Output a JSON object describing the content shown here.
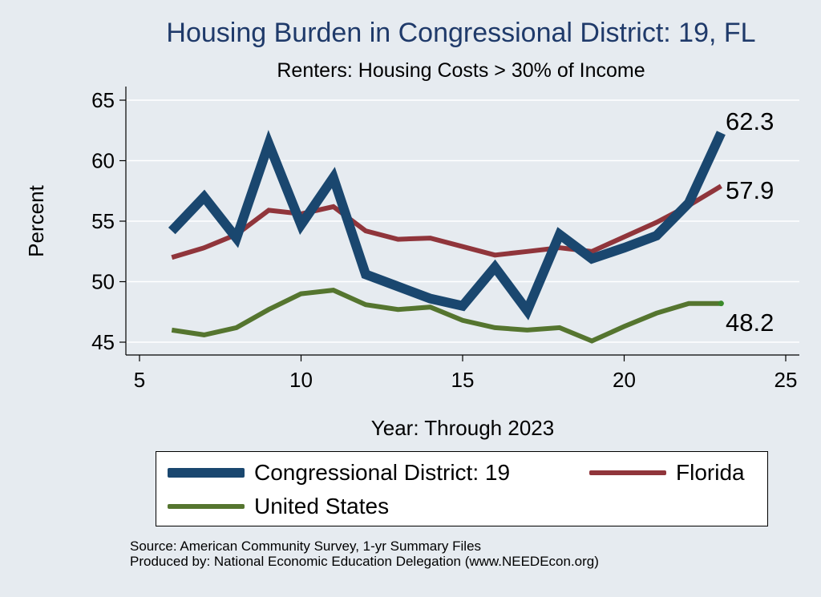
{
  "chart_data": {
    "type": "line",
    "title": "Housing Burden in Congressional District:  19, FL",
    "subtitle": "Renters: Housing Costs > 30% of Income",
    "xlabel": "Year: Through 2023",
    "ylabel": "Percent",
    "xlim": [
      5,
      25
    ],
    "ylim": [
      45,
      65
    ],
    "xticks": [
      5,
      10,
      15,
      20,
      25
    ],
    "yticks": [
      45,
      50,
      55,
      60,
      65
    ],
    "grid": true,
    "legend_position": "bottom",
    "x": [
      6,
      7,
      8,
      9,
      10,
      11,
      12,
      13,
      14,
      15,
      16,
      17,
      18,
      19,
      20,
      21,
      22,
      23
    ],
    "series": [
      {
        "name": "Congressional District:  19",
        "color": "#1a476f",
        "values": [
          54.2,
          57.0,
          53.6,
          61.4,
          54.7,
          58.6,
          50.6,
          49.6,
          48.6,
          48.0,
          51.2,
          47.6,
          53.9,
          51.9,
          52.8,
          53.8,
          56.5,
          62.3
        ],
        "end_label": "62.3"
      },
      {
        "name": "Florida",
        "color": "#90353b",
        "values": [
          52.0,
          52.8,
          53.9,
          55.9,
          55.6,
          56.2,
          54.2,
          53.5,
          53.6,
          52.9,
          52.2,
          52.5,
          52.8,
          52.5,
          53.7,
          54.9,
          56.3,
          57.9
        ],
        "end_label": "57.9"
      },
      {
        "name": "United States",
        "color": "#55752f",
        "values": [
          46.0,
          45.6,
          46.2,
          47.7,
          49.0,
          49.3,
          48.1,
          47.7,
          47.9,
          46.8,
          46.2,
          46.0,
          46.2,
          45.1,
          46.3,
          47.4,
          48.2,
          48.2
        ],
        "end_label": "48.2"
      }
    ]
  },
  "legend": {
    "items": [
      {
        "label": "Congressional District:  19"
      },
      {
        "label": "Florida"
      },
      {
        "label": "United States"
      }
    ]
  },
  "source": {
    "line1": "Source: American Community Survey, 1-yr Summary Files",
    "line2": "Produced by: National Economic Education Delegation (www.NEEDEcon.org)"
  }
}
